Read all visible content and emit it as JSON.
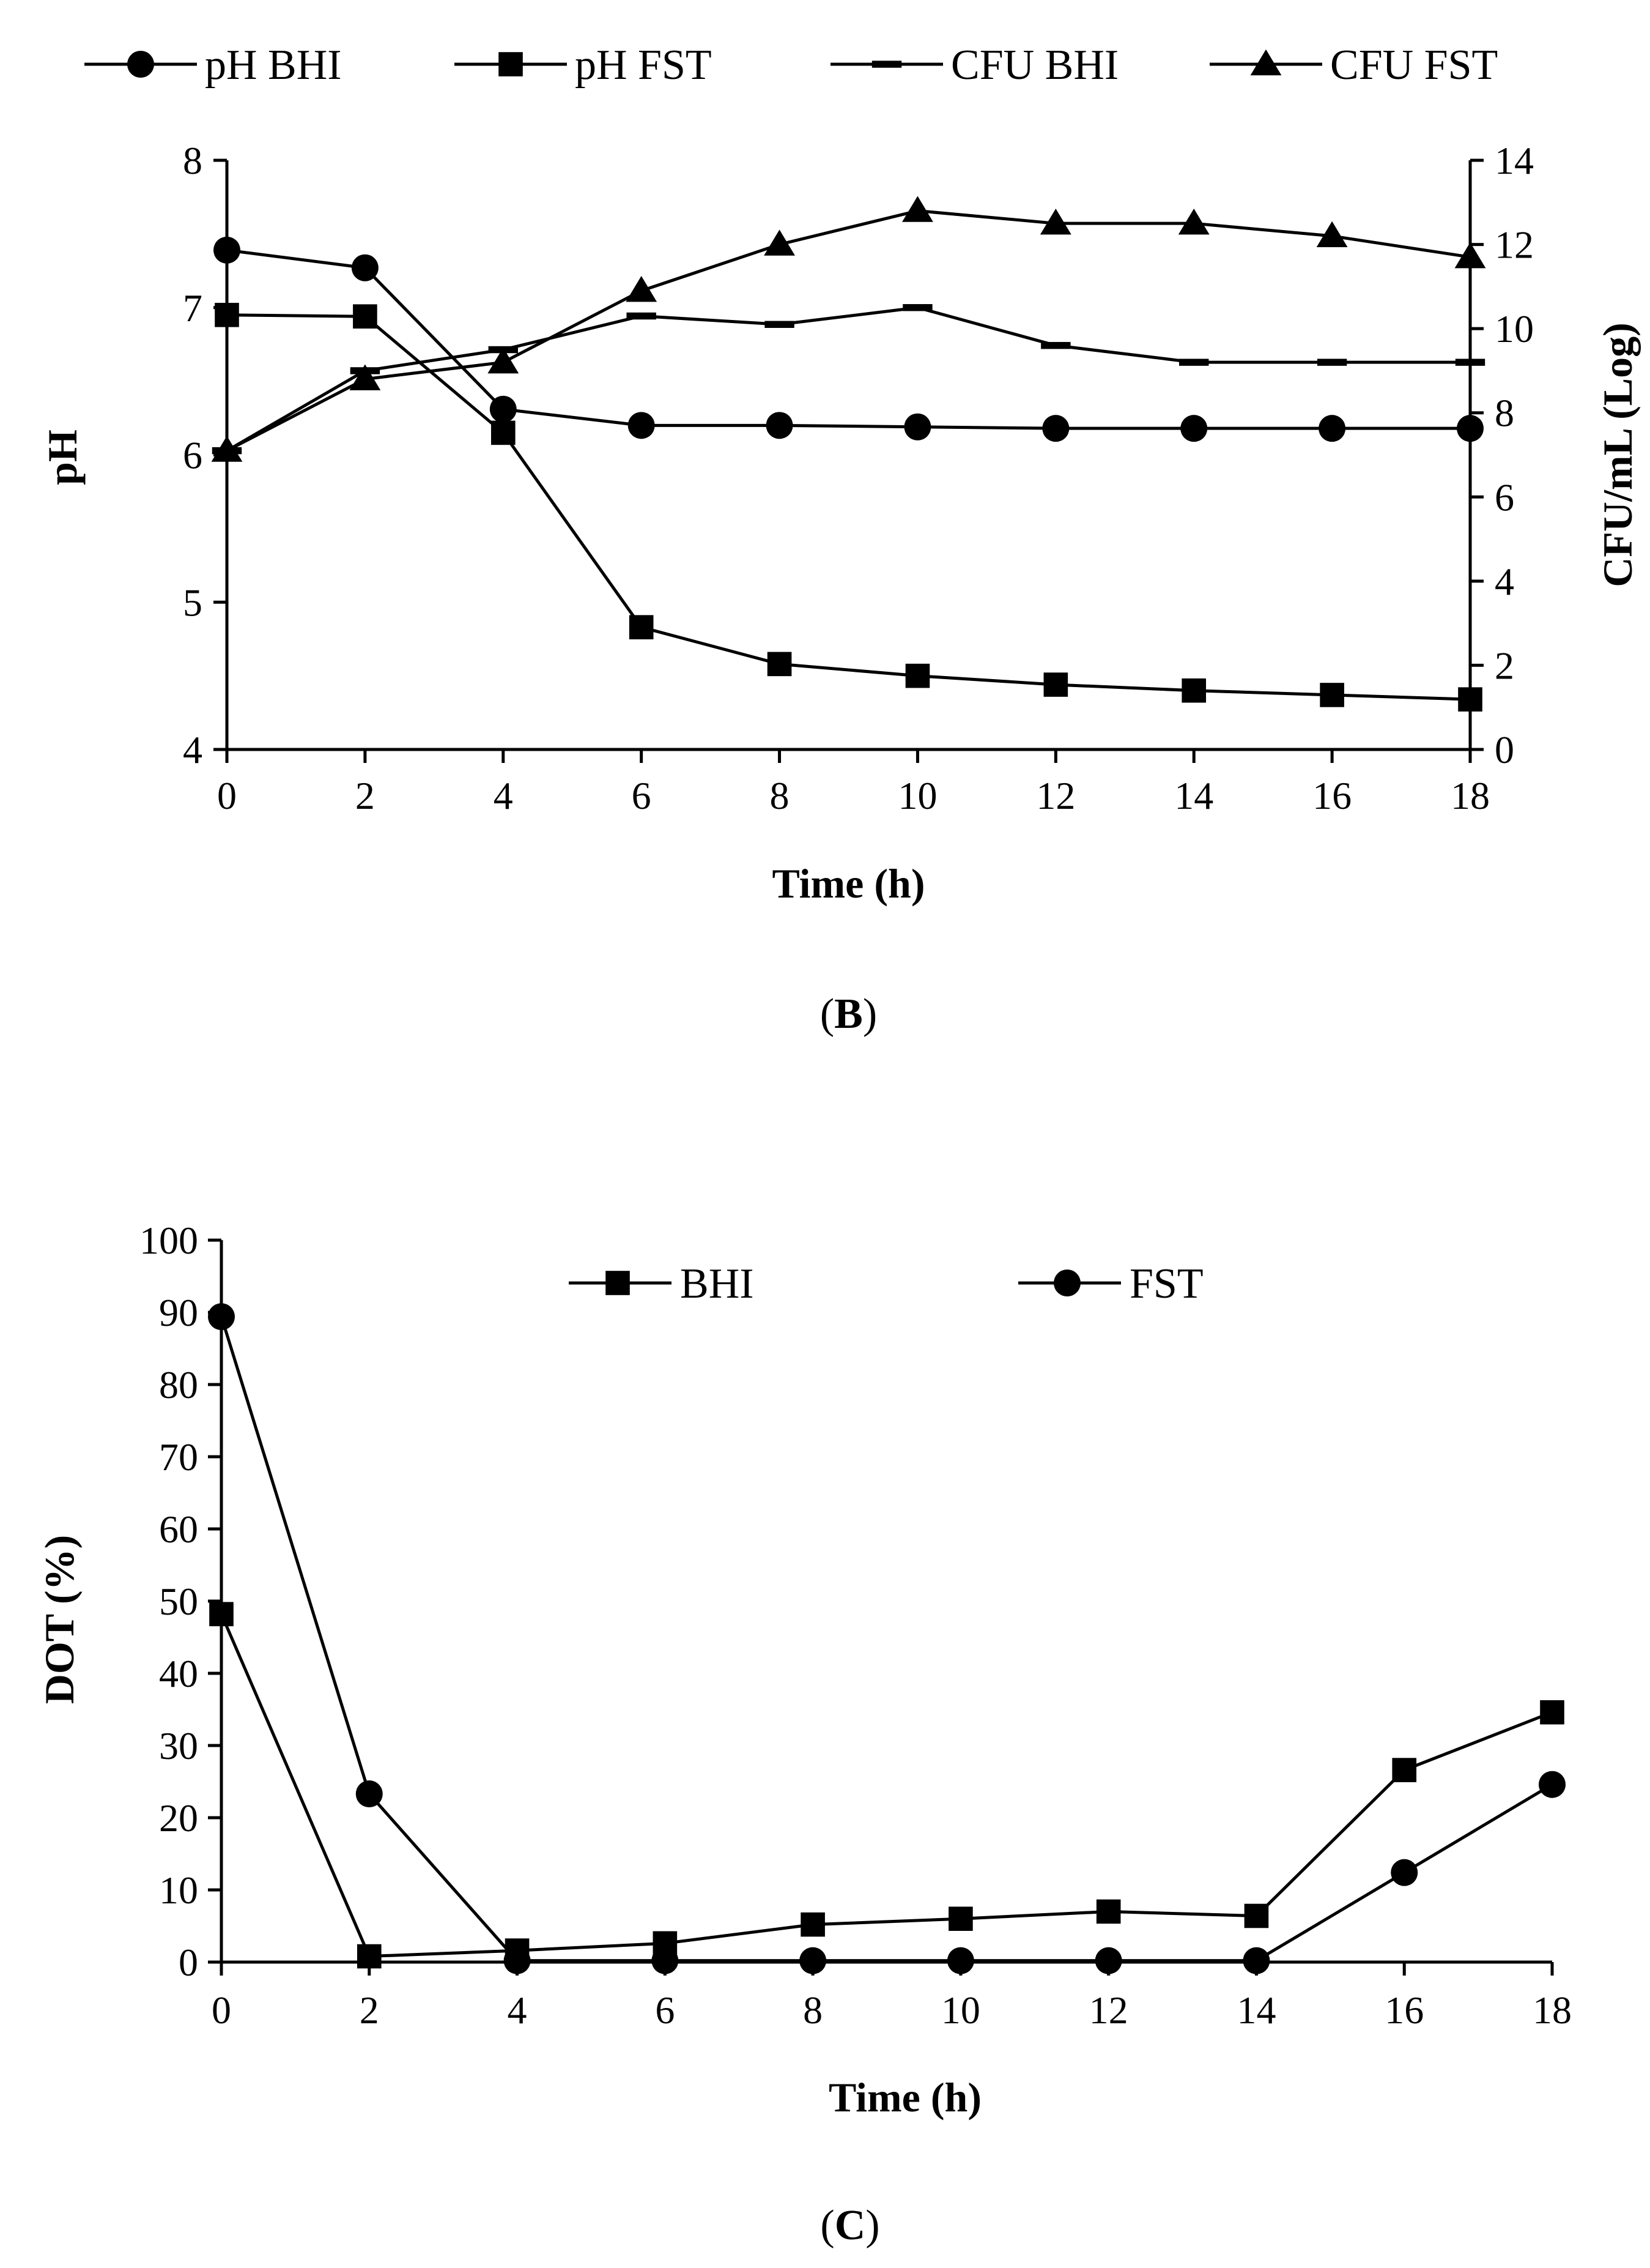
{
  "colors": {
    "ink": "#000000",
    "background": "#ffffff"
  },
  "chart_data": [
    {
      "type": "line",
      "panel_label": "(B)",
      "panel_letter": "B",
      "xlabel": "Time (h)",
      "ylabel": "pH",
      "y2label": "CFU/mL (Log)",
      "x": [
        0,
        2,
        4,
        6,
        8,
        10,
        12,
        14,
        16,
        18
      ],
      "xlim": [
        0,
        18
      ],
      "ylim": [
        4,
        8
      ],
      "y2lim": [
        0,
        14
      ],
      "xticks": [
        "0",
        "2",
        "4",
        "6",
        "8",
        "10",
        "12",
        "14",
        "16",
        "18"
      ],
      "yticks": [
        "4",
        "5",
        "6",
        "7",
        "8"
      ],
      "y2ticks": [
        "0",
        "2",
        "4",
        "6",
        "8",
        "10",
        "12",
        "14"
      ],
      "legend_position": "top",
      "series": [
        {
          "name": "pH BHI",
          "axis": "left",
          "marker": "circle",
          "values": [
            7.39,
            7.27,
            6.31,
            6.2,
            6.2,
            6.19,
            6.18,
            6.18,
            6.18,
            6.18
          ]
        },
        {
          "name": "pH FST",
          "axis": "left",
          "marker": "square",
          "values": [
            6.95,
            6.94,
            6.15,
            4.83,
            4.58,
            4.5,
            4.44,
            4.4,
            4.37,
            4.34
          ]
        },
        {
          "name": "CFU BHI",
          "axis": "right",
          "marker": "dash",
          "values": [
            7.1,
            9.0,
            9.5,
            10.3,
            10.1,
            10.5,
            9.6,
            9.2,
            9.2,
            9.2
          ]
        },
        {
          "name": "CFU FST",
          "axis": "right",
          "marker": "triangle",
          "values": [
            7.1,
            8.8,
            9.2,
            10.9,
            12.0,
            12.8,
            12.5,
            12.5,
            12.2,
            11.7
          ]
        }
      ]
    },
    {
      "type": "line",
      "panel_label": "(C)",
      "panel_letter": "C",
      "xlabel": "Time (h)",
      "ylabel": "DOT (%)",
      "x": [
        0,
        2,
        4,
        6,
        8,
        10,
        12,
        14,
        16,
        18
      ],
      "xlim": [
        0,
        18
      ],
      "ylim": [
        0,
        100
      ],
      "xticks": [
        "0",
        "2",
        "4",
        "6",
        "8",
        "10",
        "12",
        "14",
        "16",
        "18"
      ],
      "yticks": [
        "0",
        "10",
        "20",
        "30",
        "40",
        "50",
        "60",
        "70",
        "80",
        "90",
        "100"
      ],
      "legend_position": "top-center",
      "series": [
        {
          "name": "BHI",
          "marker": "square",
          "values": [
            48.2,
            0.8,
            1.6,
            2.6,
            5.2,
            6.0,
            7.0,
            6.4,
            26.6,
            34.6
          ]
        },
        {
          "name": "FST",
          "marker": "circle",
          "values": [
            89.4,
            23.3,
            0.2,
            0.2,
            0.2,
            0.2,
            0.2,
            0.2,
            12.4,
            24.6
          ]
        }
      ]
    }
  ]
}
